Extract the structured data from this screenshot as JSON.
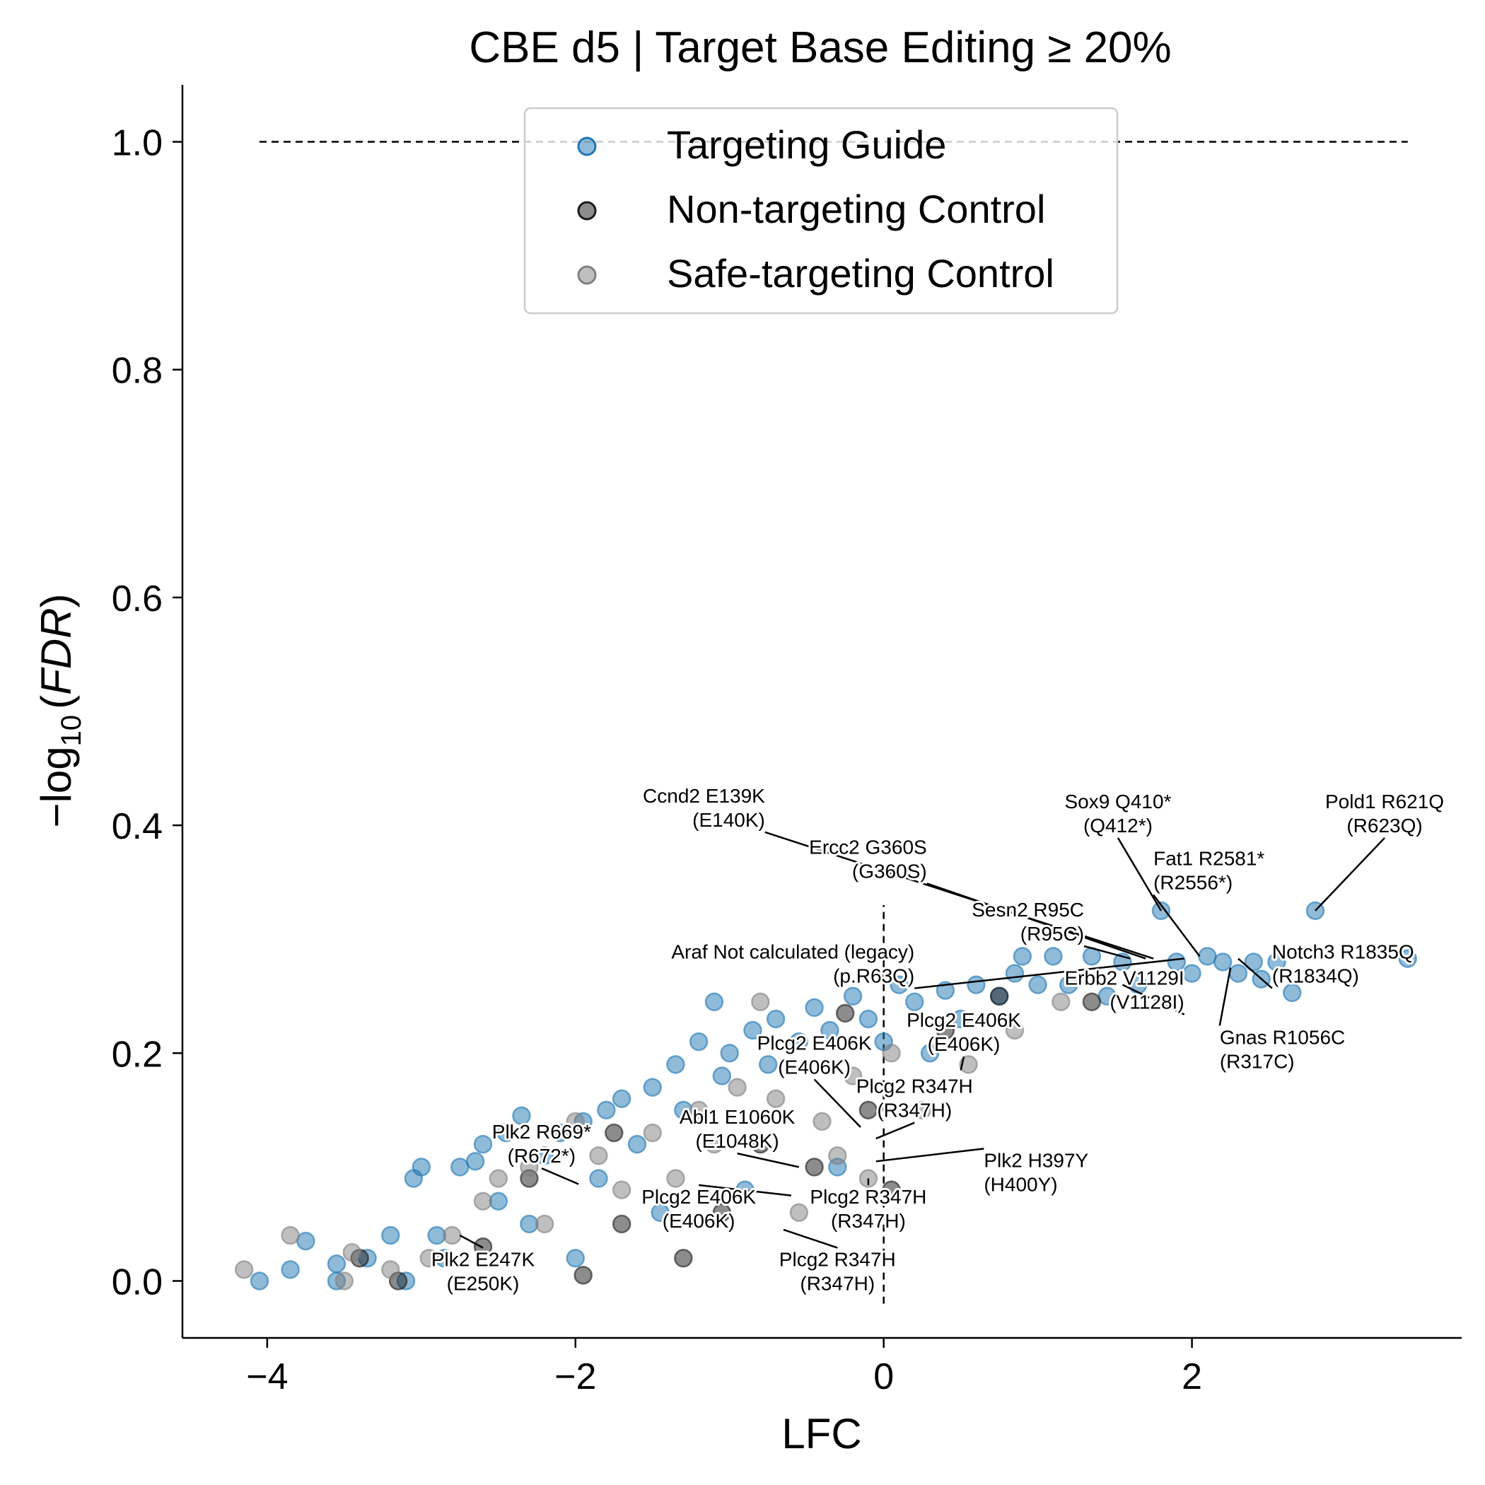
{
  "chart_data": {
    "type": "scatter",
    "title": "CBE d5 | Target Base Editing ≥ 20%",
    "xlabel": "LFC",
    "ylabel_prefix": "−log",
    "ylabel_sub": "10",
    "ylabel_open": "(",
    "ylabel_var": "FDR",
    "ylabel_close": ")",
    "xlim": [
      -4.55,
      3.75
    ],
    "ylim": [
      -0.05,
      1.05
    ],
    "xticks": [
      {
        "value": -4,
        "label": "−4"
      },
      {
        "value": -2,
        "label": "−2"
      },
      {
        "value": 0,
        "label": "0"
      },
      {
        "value": 2,
        "label": "2"
      }
    ],
    "yticks": [
      {
        "value": 0.0,
        "label": "0.0"
      },
      {
        "value": 0.2,
        "label": "0.2"
      },
      {
        "value": 0.4,
        "label": "0.4"
      },
      {
        "value": 0.6,
        "label": "0.6"
      },
      {
        "value": 0.8,
        "label": "0.8"
      },
      {
        "value": 1.0,
        "label": "1.0"
      }
    ],
    "threshold_line": {
      "y": 1.0,
      "x_range": [
        -4.05,
        3.4
      ]
    },
    "zero_line": {
      "x": 0,
      "y_range": [
        -0.02,
        0.33
      ]
    },
    "legend": {
      "position": "top-center",
      "items": [
        {
          "label": "Targeting Guide",
          "color": "#1f77b4"
        },
        {
          "label": "Non-targeting Control",
          "color": "#1a1a1a"
        },
        {
          "label": "Safe-targeting Control",
          "color": "#808080"
        }
      ]
    },
    "series": [
      {
        "name": "Targeting Guide",
        "color": "#1f77b4",
        "points": [
          [
            -4.05,
            0.0
          ],
          [
            -3.85,
            0.01
          ],
          [
            -3.75,
            0.035
          ],
          [
            -3.55,
            0.0
          ],
          [
            -3.55,
            0.015
          ],
          [
            -3.35,
            0.02
          ],
          [
            -3.2,
            0.04
          ],
          [
            -3.1,
            0.0
          ],
          [
            -3.05,
            0.09
          ],
          [
            -3.0,
            0.1
          ],
          [
            -2.9,
            0.04
          ],
          [
            -2.85,
            0.02
          ],
          [
            -2.75,
            0.1
          ],
          [
            -2.65,
            0.105
          ],
          [
            -2.6,
            0.12
          ],
          [
            -2.5,
            0.07
          ],
          [
            -2.45,
            0.13
          ],
          [
            -2.35,
            0.145
          ],
          [
            -2.3,
            0.05
          ],
          [
            -2.2,
            0.11
          ],
          [
            -2.1,
            0.13
          ],
          [
            -2.0,
            0.02
          ],
          [
            -1.95,
            0.14
          ],
          [
            -1.85,
            0.09
          ],
          [
            -1.8,
            0.15
          ],
          [
            -1.7,
            0.16
          ],
          [
            -1.6,
            0.12
          ],
          [
            -1.5,
            0.17
          ],
          [
            -1.45,
            0.06
          ],
          [
            -1.35,
            0.19
          ],
          [
            -1.3,
            0.15
          ],
          [
            -1.2,
            0.21
          ],
          [
            -1.1,
            0.245
          ],
          [
            -1.05,
            0.18
          ],
          [
            -1.0,
            0.2
          ],
          [
            -0.9,
            0.08
          ],
          [
            -0.85,
            0.22
          ],
          [
            -0.75,
            0.19
          ],
          [
            -0.7,
            0.23
          ],
          [
            -0.55,
            0.21
          ],
          [
            -0.45,
            0.24
          ],
          [
            -0.35,
            0.22
          ],
          [
            -0.3,
            0.1
          ],
          [
            -0.2,
            0.25
          ],
          [
            -0.1,
            0.23
          ],
          [
            0.0,
            0.21
          ],
          [
            0.1,
            0.26
          ],
          [
            0.2,
            0.245
          ],
          [
            0.3,
            0.2
          ],
          [
            0.4,
            0.255
          ],
          [
            0.5,
            0.23
          ],
          [
            0.6,
            0.26
          ],
          [
            0.75,
            0.25
          ],
          [
            0.85,
            0.27
          ],
          [
            0.9,
            0.285
          ],
          [
            1.0,
            0.26
          ],
          [
            1.1,
            0.285
          ],
          [
            1.2,
            0.26
          ],
          [
            1.35,
            0.285
          ],
          [
            1.45,
            0.25
          ],
          [
            1.55,
            0.28
          ],
          [
            1.65,
            0.26
          ],
          [
            1.8,
            0.325
          ],
          [
            1.9,
            0.28
          ],
          [
            2.0,
            0.27
          ],
          [
            2.1,
            0.285
          ],
          [
            2.2,
            0.28
          ],
          [
            2.3,
            0.27
          ],
          [
            2.4,
            0.28
          ],
          [
            2.45,
            0.265
          ],
          [
            2.55,
            0.28
          ],
          [
            2.65,
            0.253
          ],
          [
            2.8,
            0.325
          ],
          [
            3.4,
            0.283
          ]
        ]
      },
      {
        "name": "Non-targeting Control",
        "color": "#1a1a1a",
        "points": [
          [
            -3.4,
            0.02
          ],
          [
            -3.15,
            0.0
          ],
          [
            -2.6,
            0.03
          ],
          [
            -2.3,
            0.09
          ],
          [
            -1.95,
            0.005
          ],
          [
            -1.75,
            0.13
          ],
          [
            -1.7,
            0.05
          ],
          [
            -1.3,
            0.02
          ],
          [
            -1.05,
            0.06
          ],
          [
            -0.8,
            0.12
          ],
          [
            -0.45,
            0.1
          ],
          [
            -0.25,
            0.235
          ],
          [
            -0.1,
            0.15
          ],
          [
            0.05,
            0.08
          ],
          [
            0.4,
            0.22
          ],
          [
            0.75,
            0.25
          ],
          [
            1.35,
            0.245
          ]
        ]
      },
      {
        "name": "Safe-targeting Control",
        "color": "#808080",
        "points": [
          [
            -4.15,
            0.01
          ],
          [
            -3.85,
            0.04
          ],
          [
            -3.5,
            0.0
          ],
          [
            -3.45,
            0.025
          ],
          [
            -3.2,
            0.01
          ],
          [
            -2.95,
            0.02
          ],
          [
            -2.8,
            0.04
          ],
          [
            -2.6,
            0.07
          ],
          [
            -2.5,
            0.09
          ],
          [
            -2.3,
            0.1
          ],
          [
            -2.2,
            0.05
          ],
          [
            -2.0,
            0.14
          ],
          [
            -1.85,
            0.11
          ],
          [
            -1.7,
            0.08
          ],
          [
            -1.5,
            0.13
          ],
          [
            -1.35,
            0.09
          ],
          [
            -1.2,
            0.15
          ],
          [
            -1.1,
            0.12
          ],
          [
            -0.95,
            0.17
          ],
          [
            -0.8,
            0.245
          ],
          [
            -0.7,
            0.16
          ],
          [
            -0.55,
            0.06
          ],
          [
            -0.4,
            0.14
          ],
          [
            -0.3,
            0.11
          ],
          [
            -0.2,
            0.18
          ],
          [
            -0.1,
            0.09
          ],
          [
            0.05,
            0.2
          ],
          [
            0.25,
            0.15
          ],
          [
            0.55,
            0.19
          ],
          [
            0.85,
            0.22
          ],
          [
            1.15,
            0.245
          ]
        ]
      }
    ],
    "annotations": [
      {
        "lines": [
          "Ccnd2 E139K",
          "(E140K)"
        ],
        "anchor": "end",
        "tx": -0.77,
        "ty": 0.42,
        "px": 1.75,
        "py": 0.283
      },
      {
        "lines": [
          "Ercc2 G360S",
          "(G360S)"
        ],
        "anchor": "end",
        "tx": 0.28,
        "ty": 0.375,
        "px": 1.7,
        "py": 0.283
      },
      {
        "lines": [
          "Sesn2 R95C",
          "(R95C)"
        ],
        "anchor": "end",
        "tx": 1.3,
        "ty": 0.32,
        "px": 1.6,
        "py": 0.283
      },
      {
        "lines": [
          "Sox9 Q410*",
          "(Q412*)"
        ],
        "anchor": "middle",
        "tx": 1.52,
        "ty": 0.415,
        "px": 1.8,
        "py": 0.325
      },
      {
        "lines": [
          "Pold1 R621Q",
          "(R623Q)"
        ],
        "anchor": "middle",
        "tx": 3.25,
        "ty": 0.415,
        "px": 2.8,
        "py": 0.325
      },
      {
        "lines": [
          "Fat1 R2581*",
          "(R2556*)"
        ],
        "anchor": "start",
        "tx": 1.75,
        "ty": 0.365,
        "px": 2.05,
        "py": 0.285
      },
      {
        "lines": [
          "Araf Not calculated (legacy)",
          "(p.R63Q)"
        ],
        "anchor": "end",
        "tx": 0.2,
        "ty": 0.283,
        "px": 1.95,
        "py": 0.283
      },
      {
        "lines": [
          "Notch3 R1835Q",
          "(R1834Q)"
        ],
        "anchor": "start",
        "tx": 2.52,
        "ty": 0.283,
        "px": 2.3,
        "py": 0.283
      },
      {
        "lines": [
          "Erbb2 V1129I",
          "(V1128I)"
        ],
        "anchor": "end",
        "tx": 1.95,
        "ty": 0.26,
        "px": 1.55,
        "py": 0.26
      },
      {
        "lines": [
          "Gnas R1056C",
          "(R317C)"
        ],
        "anchor": "start",
        "tx": 2.18,
        "ty": 0.208,
        "px": 2.25,
        "py": 0.275
      },
      {
        "lines": [
          "Plcg2 E406K",
          "(E406K)"
        ],
        "anchor": "middle",
        "tx": 0.52,
        "ty": 0.223,
        "px": 0.5,
        "py": 0.185
      },
      {
        "lines": [
          "Plcg2 E406K",
          "(E406K)"
        ],
        "anchor": "middle",
        "tx": -0.45,
        "ty": 0.203,
        "px": -0.15,
        "py": 0.135
      },
      {
        "lines": [
          "Plcg2 R347H",
          "(R347H)"
        ],
        "anchor": "middle",
        "tx": 0.2,
        "ty": 0.165,
        "px": -0.05,
        "py": 0.125
      },
      {
        "lines": [
          "Abl1 E1060K",
          "(E1048K)"
        ],
        "anchor": "middle",
        "tx": -0.95,
        "ty": 0.138,
        "px": -0.55,
        "py": 0.1
      },
      {
        "lines": [
          "Plk2 R669*",
          "(R672*)"
        ],
        "anchor": "middle",
        "tx": -2.22,
        "ty": 0.125,
        "px": -1.98,
        "py": 0.085
      },
      {
        "lines": [
          "Plk2 H397Y",
          "(H400Y)"
        ],
        "anchor": "start",
        "tx": 0.65,
        "ty": 0.1,
        "px": -0.05,
        "py": 0.105
      },
      {
        "lines": [
          "Plcg2 E406K",
          "(E406K)"
        ],
        "anchor": "middle",
        "tx": -1.2,
        "ty": 0.068,
        "px": -0.6,
        "py": 0.075
      },
      {
        "lines": [
          "Plcg2 R347H",
          "(R347H)"
        ],
        "anchor": "middle",
        "tx": -0.1,
        "ty": 0.068,
        "px": -0.1,
        "py": 0.09
      },
      {
        "lines": [
          "Plcg2 R347H",
          "(R347H)"
        ],
        "anchor": "middle",
        "tx": -0.3,
        "ty": 0.013,
        "px": -0.65,
        "py": 0.045
      },
      {
        "lines": [
          "Plk2 E247K",
          "(E250K)"
        ],
        "anchor": "middle",
        "tx": -2.6,
        "ty": 0.013,
        "px": -2.75,
        "py": 0.04
      }
    ]
  }
}
